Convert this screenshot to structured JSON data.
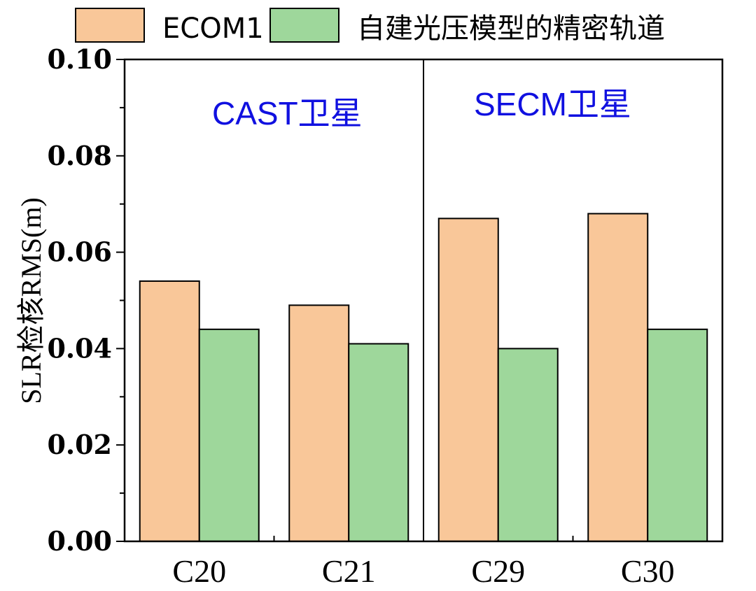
{
  "chart_data": {
    "type": "bar",
    "title": "",
    "xlabel": "",
    "ylabel": "SLR检核RMS(m)",
    "categories": [
      "C20",
      "C21",
      "C29",
      "C30"
    ],
    "series": [
      {
        "name": "ECOM1",
        "values": [
          0.054,
          0.049,
          0.067,
          0.068
        ],
        "color": "#f9c799"
      },
      {
        "name": "自建光压模型的精密轨道",
        "values": [
          0.044,
          0.041,
          0.04,
          0.044
        ],
        "color": "#9ed79b"
      }
    ],
    "ylim": [
      0,
      0.1
    ],
    "yticks": [
      "0.00",
      "0.02",
      "0.04",
      "0.06",
      "0.08",
      "0.10"
    ],
    "legend_position": "top",
    "grid": false,
    "groups": [
      {
        "label": "CAST卫星",
        "categories": [
          "C20",
          "C21"
        ]
      },
      {
        "label": "SECM卫星",
        "categories": [
          "C29",
          "C30"
        ]
      }
    ],
    "annotation_color": "#1010e0"
  }
}
